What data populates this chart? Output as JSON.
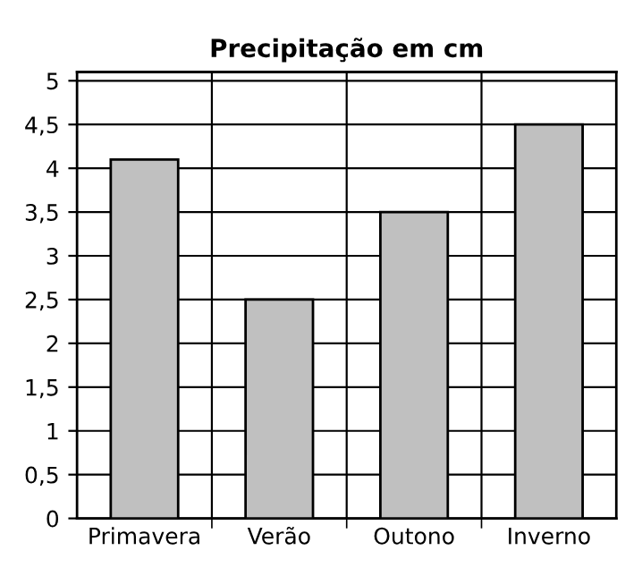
{
  "chart_data": {
    "type": "bar",
    "title": "Precipitação em cm",
    "categories": [
      "Primavera",
      "Verão",
      "Outono",
      "Inverno"
    ],
    "values": [
      4.1,
      2.5,
      3.5,
      4.5
    ],
    "color": "#c0c0c0",
    "ylim": [
      0,
      5.1
    ],
    "yticks": [
      0,
      {
        "value": 0.5,
        "label": "0,5"
      },
      1,
      {
        "value": 1.5,
        "label": "1,5"
      },
      2,
      {
        "value": 2.5,
        "label": "2,5"
      },
      3,
      {
        "value": 3.5,
        "label": "3,5"
      },
      4,
      {
        "value": 4.5,
        "label": "4,5"
      },
      5
    ],
    "grid": true
  }
}
